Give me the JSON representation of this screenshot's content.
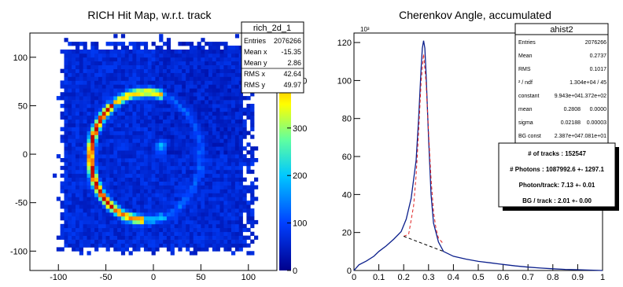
{
  "panels": {
    "left": {
      "title": "RICH Hit Map, w.r.t. track",
      "stats": {
        "name": "rich_2d_1",
        "rows": [
          {
            "label": "Entries",
            "value": "2076266"
          },
          {
            "label": "Mean x",
            "value": "-15.35"
          },
          {
            "label": "Mean y",
            "value": "2.86"
          },
          {
            "label": "RMS x",
            "value": "42.64"
          },
          {
            "label": "RMS y",
            "value": "49.97"
          }
        ]
      }
    },
    "right": {
      "title": "Cherenkov Angle, accumulated",
      "stats": {
        "name": "ahist2",
        "rows": [
          {
            "label": "Entries",
            "value": "2076266"
          },
          {
            "label": "Mean",
            "value": "0.2737"
          },
          {
            "label": "RMS",
            "value": "0.1017"
          },
          {
            "label": "² / ndf",
            "value": "1.304e+04 / 45"
          },
          {
            "label": "constant",
            "value": "9.943e+04",
            "err": "1.372e+02"
          },
          {
            "label": "mean",
            "value": "0.2808",
            "err": "0.0000"
          },
          {
            "label": "sigma",
            "value": "0.02188",
            "err": "0.00003"
          },
          {
            "label": "BG const",
            "value": "2.387e+04",
            "err": "7.081e+01"
          }
        ]
      },
      "info": [
        "# of tracks : 152547",
        "# Photons : 1087992.6 +- 1297.1",
        "Photon/track: 7.13 +- 0.01",
        "BG / track  : 2.01 +- 0.00"
      ]
    }
  },
  "chart_data": [
    {
      "type": "heatmap",
      "title": "RICH Hit Map, w.r.t. track",
      "xlim": [
        -130,
        130
      ],
      "ylim": [
        -120,
        125
      ],
      "x_ticks": [
        -100,
        -50,
        0,
        50,
        100
      ],
      "y_ticks": [
        -100,
        -50,
        0,
        50,
        100
      ],
      "z_ticks": [
        0,
        100,
        200,
        300,
        400
      ],
      "z_range": [
        0,
        500
      ],
      "colormap": "blue-cyan-yellow-red",
      "ring": {
        "center": [
          -8,
          -2
        ],
        "radius_x": 58,
        "radius_y": 66
      },
      "central_spot": {
        "center": [
          8,
          8
        ]
      }
    },
    {
      "type": "line",
      "title": "Cherenkov Angle, accumulated",
      "y_exponent_label": "10³",
      "xlim": [
        0,
        1
      ],
      "ylim": [
        0,
        125
      ],
      "x_ticks": [
        0,
        0.1,
        0.2,
        0.3,
        0.4,
        0.5,
        0.6,
        0.7,
        0.8,
        0.9,
        1
      ],
      "y_ticks": [
        0,
        20,
        40,
        60,
        80,
        100,
        120
      ],
      "series": [
        {
          "colour": "#0b1f8c",
          "x": [
            0.0,
            0.02,
            0.05,
            0.08,
            0.1,
            0.13,
            0.16,
            0.19,
            0.21,
            0.23,
            0.25,
            0.26,
            0.27,
            0.275,
            0.28,
            0.285,
            0.29,
            0.3,
            0.31,
            0.32,
            0.34,
            0.36,
            0.4,
            0.45,
            0.5,
            0.55,
            0.6,
            0.65,
            0.7,
            0.75,
            0.8,
            0.85,
            0.9,
            0.95,
            1.0
          ],
          "y": [
            0,
            3,
            5,
            7.5,
            10,
            13,
            16.5,
            20.5,
            27,
            38,
            58,
            80,
            106,
            117,
            121,
            117,
            104,
            70,
            40,
            25,
            15,
            10,
            7.5,
            6,
            4.8,
            4,
            3.2,
            2.4,
            1.8,
            1.3,
            0.9,
            0.6,
            0.4,
            0.2,
            0
          ]
        },
        {
          "colour": "#e02222",
          "style": "dashed",
          "x": [
            0.2,
            0.22,
            0.24,
            0.25,
            0.26,
            0.27,
            0.28,
            0.29,
            0.3,
            0.31,
            0.32,
            0.33,
            0.34,
            0.36
          ],
          "y": [
            18,
            19,
            34,
            50,
            73,
            99,
            114,
            99,
            73,
            48,
            31,
            22,
            17,
            14
          ]
        },
        {
          "colour": "#000000",
          "style": "dashed",
          "x": [
            0.2,
            0.36
          ],
          "y": [
            18,
            10
          ]
        }
      ]
    }
  ]
}
